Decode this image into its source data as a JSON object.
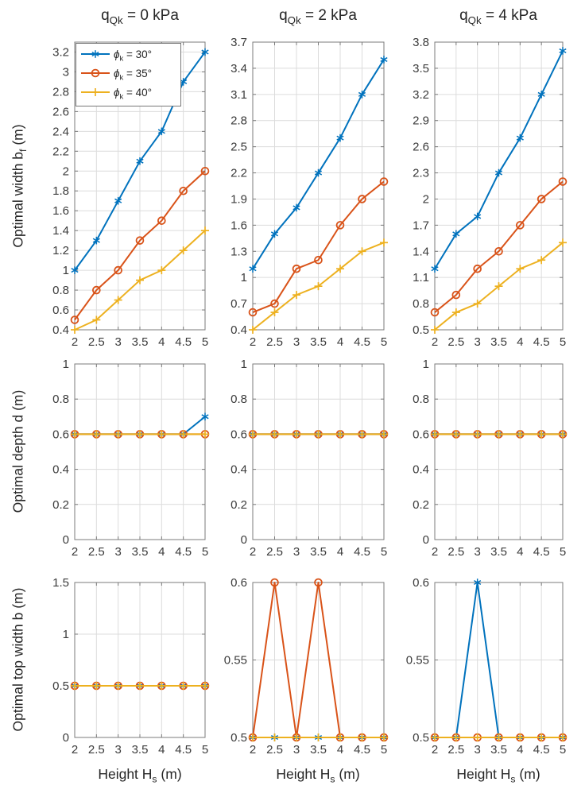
{
  "figure": {
    "background": "#ffffff",
    "columns": [
      {
        "title": {
          "base": "q",
          "sub": "Qk",
          "rest": " = 0 kPa"
        }
      },
      {
        "title": {
          "base": "q",
          "sub": "Qk",
          "rest": " = 2 kPa"
        }
      },
      {
        "title": {
          "base": "q",
          "sub": "Qk",
          "rest": " = 4 kPa"
        }
      }
    ],
    "rows": [
      {
        "ylabel": {
          "pre": "Optimal width b",
          "sub": "f",
          "post": " (m)"
        }
      },
      {
        "ylabel": {
          "pre": "Optimal depth d (m)",
          "sub": "",
          "post": ""
        }
      },
      {
        "ylabel": {
          "pre": "Optimal top width b (m)",
          "sub": "",
          "post": ""
        }
      }
    ],
    "xlabel": {
      "pre": "Height H",
      "sub": "s",
      "post": " (m)"
    },
    "legend": {
      "position": "top-left of first subplot",
      "entries": [
        {
          "base": "ϕ",
          "sub": "k",
          "rest": " = 30°",
          "color": "#0072BD",
          "marker": "asterisk"
        },
        {
          "base": "ϕ",
          "sub": "k",
          "rest": " = 35°",
          "color": "#D95319",
          "marker": "circle"
        },
        {
          "base": "ϕ",
          "sub": "k",
          "rest": " = 40°",
          "color": "#EDB120",
          "marker": "plus"
        }
      ]
    },
    "colors": {
      "blue": "#0072BD",
      "orange": "#D95319",
      "yellow": "#EDB120",
      "axis": "#7b7b7b",
      "grid": "#dcdcdc",
      "text": "#262626"
    }
  },
  "chart_data": [
    {
      "type": "line",
      "row": 0,
      "col": 0,
      "title": "q_Qk = 0 kPa",
      "ylabel": "Optimal width b_f (m)",
      "x": [
        2,
        2.5,
        3,
        3.5,
        4,
        4.5,
        5
      ],
      "xticks": [
        2,
        2.5,
        3,
        3.5,
        4,
        4.5,
        5
      ],
      "ylim": [
        0.4,
        3.3
      ],
      "yticks": [
        0.4,
        0.6,
        0.8,
        1,
        1.2,
        1.4,
        1.6,
        1.8,
        2,
        2.2,
        2.4,
        2.6,
        2.8,
        3,
        3.2
      ],
      "series": [
        {
          "name": "phi_k = 30deg",
          "color": "#0072BD",
          "marker": "asterisk",
          "values": [
            1.0,
            1.3,
            1.7,
            2.1,
            2.4,
            2.9,
            3.2
          ]
        },
        {
          "name": "phi_k = 35deg",
          "color": "#D95319",
          "marker": "circle",
          "values": [
            0.5,
            0.8,
            1.0,
            1.3,
            1.5,
            1.8,
            2.0
          ]
        },
        {
          "name": "phi_k = 40deg",
          "color": "#EDB120",
          "marker": "plus",
          "values": [
            0.4,
            0.5,
            0.7,
            0.9,
            1.0,
            1.2,
            1.4
          ]
        }
      ]
    },
    {
      "type": "line",
      "row": 0,
      "col": 1,
      "title": "q_Qk = 2 kPa",
      "x": [
        2,
        2.5,
        3,
        3.5,
        4,
        4.5,
        5
      ],
      "xticks": [
        2,
        2.5,
        3,
        3.5,
        4,
        4.5,
        5
      ],
      "ylim": [
        0.4,
        3.7
      ],
      "yticks": [
        0.4,
        0.7,
        1,
        1.3,
        1.6,
        1.9,
        2.2,
        2.5,
        2.8,
        3.1,
        3.4,
        3.7
      ],
      "series": [
        {
          "name": "phi_k = 30deg",
          "color": "#0072BD",
          "marker": "asterisk",
          "values": [
            1.1,
            1.5,
            1.8,
            2.2,
            2.6,
            3.1,
            3.5
          ]
        },
        {
          "name": "phi_k = 35deg",
          "color": "#D95319",
          "marker": "circle",
          "values": [
            0.6,
            0.7,
            1.1,
            1.2,
            1.6,
            1.9,
            2.1
          ]
        },
        {
          "name": "phi_k = 40deg",
          "color": "#EDB120",
          "marker": "plus",
          "values": [
            0.4,
            0.6,
            0.8,
            0.9,
            1.1,
            1.3,
            1.4
          ]
        }
      ]
    },
    {
      "type": "line",
      "row": 0,
      "col": 2,
      "title": "q_Qk = 4 kPa",
      "x": [
        2,
        2.5,
        3,
        3.5,
        4,
        4.5,
        5
      ],
      "xticks": [
        2,
        2.5,
        3,
        3.5,
        4,
        4.5,
        5
      ],
      "ylim": [
        0.5,
        3.8
      ],
      "yticks": [
        0.5,
        0.8,
        1.1,
        1.4,
        1.7,
        2,
        2.3,
        2.6,
        2.9,
        3.2,
        3.5,
        3.8
      ],
      "series": [
        {
          "name": "phi_k = 30deg",
          "color": "#0072BD",
          "marker": "asterisk",
          "values": [
            1.2,
            1.6,
            1.8,
            2.3,
            2.7,
            3.2,
            3.7
          ]
        },
        {
          "name": "phi_k = 35deg",
          "color": "#D95319",
          "marker": "circle",
          "values": [
            0.7,
            0.9,
            1.2,
            1.4,
            1.7,
            2.0,
            2.2
          ]
        },
        {
          "name": "phi_k = 40deg",
          "color": "#EDB120",
          "marker": "plus",
          "values": [
            0.5,
            0.7,
            0.8,
            1.0,
            1.2,
            1.3,
            1.5
          ]
        }
      ]
    },
    {
      "type": "line",
      "row": 1,
      "col": 0,
      "ylabel": "Optimal depth d (m)",
      "x": [
        2,
        2.5,
        3,
        3.5,
        4,
        4.5,
        5
      ],
      "xticks": [
        2,
        2.5,
        3,
        3.5,
        4,
        4.5,
        5
      ],
      "ylim": [
        0,
        1
      ],
      "yticks": [
        0,
        0.2,
        0.4,
        0.6,
        0.8,
        1
      ],
      "series": [
        {
          "name": "phi_k = 30deg",
          "color": "#0072BD",
          "marker": "asterisk",
          "values": [
            0.6,
            0.6,
            0.6,
            0.6,
            0.6,
            0.6,
            0.7
          ]
        },
        {
          "name": "phi_k = 35deg",
          "color": "#D95319",
          "marker": "circle",
          "values": [
            0.6,
            0.6,
            0.6,
            0.6,
            0.6,
            0.6,
            0.6
          ]
        },
        {
          "name": "phi_k = 40deg",
          "color": "#EDB120",
          "marker": "plus",
          "values": [
            0.6,
            0.6,
            0.6,
            0.6,
            0.6,
            0.6,
            0.6
          ]
        }
      ]
    },
    {
      "type": "line",
      "row": 1,
      "col": 1,
      "x": [
        2,
        2.5,
        3,
        3.5,
        4,
        4.5,
        5
      ],
      "xticks": [
        2,
        2.5,
        3,
        3.5,
        4,
        4.5,
        5
      ],
      "ylim": [
        0,
        1
      ],
      "yticks": [
        0,
        0.2,
        0.4,
        0.6,
        0.8,
        1
      ],
      "series": [
        {
          "name": "phi_k = 30deg",
          "color": "#0072BD",
          "marker": "asterisk",
          "values": [
            0.6,
            0.6,
            0.6,
            0.6,
            0.6,
            0.6,
            0.6
          ]
        },
        {
          "name": "phi_k = 35deg",
          "color": "#D95319",
          "marker": "circle",
          "values": [
            0.6,
            0.6,
            0.6,
            0.6,
            0.6,
            0.6,
            0.6
          ]
        },
        {
          "name": "phi_k = 40deg",
          "color": "#EDB120",
          "marker": "plus",
          "values": [
            0.6,
            0.6,
            0.6,
            0.6,
            0.6,
            0.6,
            0.6
          ]
        }
      ]
    },
    {
      "type": "line",
      "row": 1,
      "col": 2,
      "x": [
        2,
        2.5,
        3,
        3.5,
        4,
        4.5,
        5
      ],
      "xticks": [
        2,
        2.5,
        3,
        3.5,
        4,
        4.5,
        5
      ],
      "ylim": [
        0,
        1
      ],
      "yticks": [
        0,
        0.2,
        0.4,
        0.6,
        0.8,
        1
      ],
      "series": [
        {
          "name": "phi_k = 30deg",
          "color": "#0072BD",
          "marker": "asterisk",
          "values": [
            0.6,
            0.6,
            0.6,
            0.6,
            0.6,
            0.6,
            0.6
          ]
        },
        {
          "name": "phi_k = 35deg",
          "color": "#D95319",
          "marker": "circle",
          "values": [
            0.6,
            0.6,
            0.6,
            0.6,
            0.6,
            0.6,
            0.6
          ]
        },
        {
          "name": "phi_k = 40deg",
          "color": "#EDB120",
          "marker": "plus",
          "values": [
            0.6,
            0.6,
            0.6,
            0.6,
            0.6,
            0.6,
            0.6
          ]
        }
      ]
    },
    {
      "type": "line",
      "row": 2,
      "col": 0,
      "ylabel": "Optimal top width b (m)",
      "xlabel": "Height H_s (m)",
      "x": [
        2,
        2.5,
        3,
        3.5,
        4,
        4.5,
        5
      ],
      "xticks": [
        2,
        2.5,
        3,
        3.5,
        4,
        4.5,
        5
      ],
      "ylim": [
        0,
        1.5
      ],
      "yticks": [
        0,
        0.5,
        1,
        1.5
      ],
      "series": [
        {
          "name": "phi_k = 30deg",
          "color": "#0072BD",
          "marker": "asterisk",
          "values": [
            0.5,
            0.5,
            0.5,
            0.5,
            0.5,
            0.5,
            0.5
          ]
        },
        {
          "name": "phi_k = 35deg",
          "color": "#D95319",
          "marker": "circle",
          "values": [
            0.5,
            0.5,
            0.5,
            0.5,
            0.5,
            0.5,
            0.5
          ]
        },
        {
          "name": "phi_k = 40deg",
          "color": "#EDB120",
          "marker": "plus",
          "values": [
            0.5,
            0.5,
            0.5,
            0.5,
            0.5,
            0.5,
            0.5
          ]
        }
      ]
    },
    {
      "type": "line",
      "row": 2,
      "col": 1,
      "xlabel": "Height H_s (m)",
      "x": [
        2,
        2.5,
        3,
        3.5,
        4,
        4.5,
        5
      ],
      "xticks": [
        2,
        2.5,
        3,
        3.5,
        4,
        4.5,
        5
      ],
      "ylim": [
        0.5,
        0.6
      ],
      "yticks": [
        0.5,
        0.55,
        0.6
      ],
      "series": [
        {
          "name": "phi_k = 30deg",
          "color": "#0072BD",
          "marker": "asterisk",
          "values": [
            0.5,
            0.5,
            0.5,
            0.5,
            0.5,
            0.5,
            0.5
          ]
        },
        {
          "name": "phi_k = 35deg",
          "color": "#D95319",
          "marker": "circle",
          "values": [
            0.5,
            0.6,
            0.5,
            0.6,
            0.5,
            0.5,
            0.5
          ]
        },
        {
          "name": "phi_k = 40deg",
          "color": "#EDB120",
          "marker": "plus",
          "values": [
            0.5,
            0.5,
            0.5,
            0.5,
            0.5,
            0.5,
            0.5
          ]
        }
      ]
    },
    {
      "type": "line",
      "row": 2,
      "col": 2,
      "xlabel": "Height H_s (m)",
      "x": [
        2,
        2.5,
        3,
        3.5,
        4,
        4.5,
        5
      ],
      "xticks": [
        2,
        2.5,
        3,
        3.5,
        4,
        4.5,
        5
      ],
      "ylim": [
        0.5,
        0.6
      ],
      "yticks": [
        0.5,
        0.55,
        0.6
      ],
      "series": [
        {
          "name": "phi_k = 30deg",
          "color": "#0072BD",
          "marker": "asterisk",
          "values": [
            0.5,
            0.5,
            0.6,
            0.5,
            0.5,
            0.5,
            0.5
          ]
        },
        {
          "name": "phi_k = 35deg",
          "color": "#D95319",
          "marker": "circle",
          "values": [
            0.5,
            0.5,
            0.5,
            0.5,
            0.5,
            0.5,
            0.5
          ]
        },
        {
          "name": "phi_k = 40deg",
          "color": "#EDB120",
          "marker": "plus",
          "values": [
            0.5,
            0.5,
            0.5,
            0.5,
            0.5,
            0.5,
            0.5
          ]
        }
      ]
    }
  ]
}
